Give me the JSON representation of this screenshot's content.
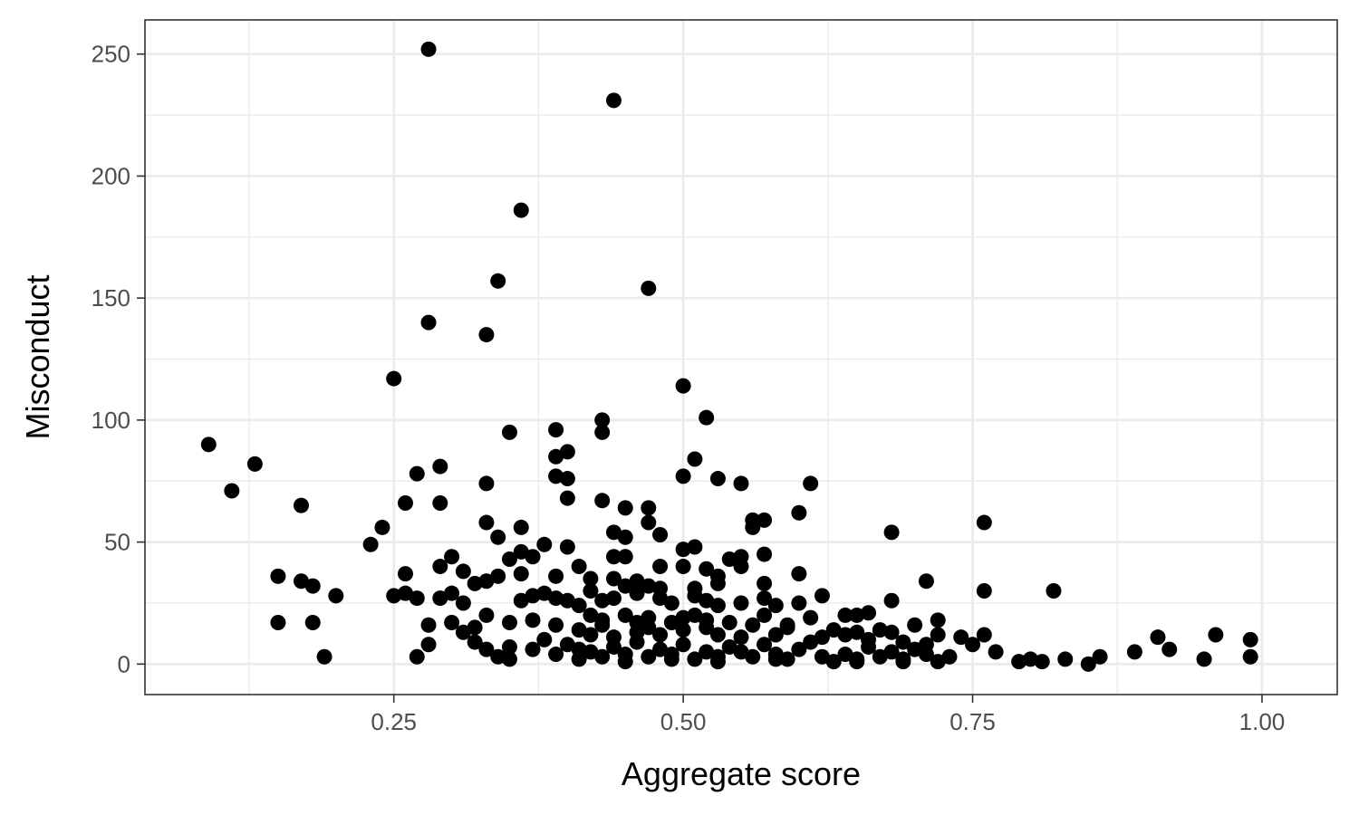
{
  "chart_data": {
    "type": "scatter",
    "title": "",
    "xlabel": "Aggregate score",
    "ylabel": "Misconduct",
    "xlim": [
      0.035,
      1.065
    ],
    "ylim": [
      -12.5,
      264
    ],
    "x_ticks": [
      0.25,
      0.5,
      0.75,
      1.0
    ],
    "x_tick_labels": [
      "0.25",
      "0.50",
      "0.75",
      "1.00"
    ],
    "y_ticks": [
      0,
      50,
      100,
      150,
      200,
      250
    ],
    "y_tick_labels": [
      "0",
      "50",
      "100",
      "150",
      "200",
      "250"
    ],
    "grid": true,
    "point_color": "#000000",
    "points": [
      [
        0.28,
        252
      ],
      [
        0.44,
        231
      ],
      [
        0.36,
        186
      ],
      [
        0.34,
        157
      ],
      [
        0.47,
        154
      ],
      [
        0.28,
        140
      ],
      [
        0.33,
        135
      ],
      [
        0.25,
        117
      ],
      [
        0.5,
        114
      ],
      [
        0.52,
        101
      ],
      [
        0.43,
        100
      ],
      [
        0.09,
        90
      ],
      [
        0.39,
        96
      ],
      [
        0.43,
        95
      ],
      [
        0.35,
        95
      ],
      [
        0.4,
        87
      ],
      [
        0.39,
        85
      ],
      [
        0.13,
        82
      ],
      [
        0.29,
        81
      ],
      [
        0.27,
        78
      ],
      [
        0.51,
        84
      ],
      [
        0.39,
        77
      ],
      [
        0.5,
        77
      ],
      [
        0.4,
        76
      ],
      [
        0.53,
        76
      ],
      [
        0.55,
        74
      ],
      [
        0.61,
        74
      ],
      [
        0.33,
        74
      ],
      [
        0.11,
        71
      ],
      [
        0.43,
        67
      ],
      [
        0.4,
        68
      ],
      [
        0.29,
        66
      ],
      [
        0.26,
        66
      ],
      [
        0.17,
        65
      ],
      [
        0.45,
        64
      ],
      [
        0.47,
        64
      ],
      [
        0.6,
        62
      ],
      [
        0.56,
        59
      ],
      [
        0.57,
        59
      ],
      [
        0.33,
        58
      ],
      [
        0.47,
        58
      ],
      [
        0.76,
        58
      ],
      [
        0.36,
        56
      ],
      [
        0.56,
        56
      ],
      [
        0.24,
        56
      ],
      [
        0.44,
        54
      ],
      [
        0.68,
        54
      ],
      [
        0.45,
        52
      ],
      [
        0.48,
        53
      ],
      [
        0.34,
        52
      ],
      [
        0.23,
        49
      ],
      [
        0.38,
        49
      ],
      [
        0.4,
        48
      ],
      [
        0.5,
        47
      ],
      [
        0.51,
        48
      ],
      [
        0.57,
        45
      ],
      [
        0.36,
        46
      ],
      [
        0.3,
        44
      ],
      [
        0.35,
        43
      ],
      [
        0.37,
        44
      ],
      [
        0.44,
        44
      ],
      [
        0.45,
        44
      ],
      [
        0.54,
        43
      ],
      [
        0.55,
        44
      ],
      [
        0.29,
        40
      ],
      [
        0.31,
        38
      ],
      [
        0.41,
        40
      ],
      [
        0.48,
        40
      ],
      [
        0.5,
        40
      ],
      [
        0.52,
        39
      ],
      [
        0.55,
        40
      ],
      [
        0.36,
        37
      ],
      [
        0.39,
        36
      ],
      [
        0.26,
        37
      ],
      [
        0.15,
        36
      ],
      [
        0.17,
        34
      ],
      [
        0.18,
        32
      ],
      [
        0.32,
        33
      ],
      [
        0.33,
        34
      ],
      [
        0.34,
        36
      ],
      [
        0.42,
        35
      ],
      [
        0.44,
        35
      ],
      [
        0.46,
        34
      ],
      [
        0.47,
        32
      ],
      [
        0.53,
        36
      ],
      [
        0.6,
        37
      ],
      [
        0.71,
        34
      ],
      [
        0.76,
        30
      ],
      [
        0.82,
        30
      ],
      [
        0.2,
        28
      ],
      [
        0.25,
        28
      ],
      [
        0.26,
        29
      ],
      [
        0.27,
        27
      ],
      [
        0.29,
        27
      ],
      [
        0.3,
        29
      ],
      [
        0.31,
        25
      ],
      [
        0.36,
        26
      ],
      [
        0.37,
        28
      ],
      [
        0.38,
        29
      ],
      [
        0.39,
        27
      ],
      [
        0.4,
        26
      ],
      [
        0.41,
        24
      ],
      [
        0.43,
        26
      ],
      [
        0.44,
        27
      ],
      [
        0.46,
        29
      ],
      [
        0.48,
        27
      ],
      [
        0.49,
        25
      ],
      [
        0.51,
        28
      ],
      [
        0.52,
        26
      ],
      [
        0.53,
        24
      ],
      [
        0.55,
        25
      ],
      [
        0.57,
        27
      ],
      [
        0.58,
        24
      ],
      [
        0.6,
        25
      ],
      [
        0.62,
        28
      ],
      [
        0.64,
        20
      ],
      [
        0.66,
        21
      ],
      [
        0.68,
        26
      ],
      [
        0.15,
        17
      ],
      [
        0.18,
        17
      ],
      [
        0.28,
        16
      ],
      [
        0.3,
        17
      ],
      [
        0.32,
        15
      ],
      [
        0.33,
        20
      ],
      [
        0.35,
        17
      ],
      [
        0.37,
        18
      ],
      [
        0.39,
        16
      ],
      [
        0.42,
        20
      ],
      [
        0.43,
        18
      ],
      [
        0.45,
        20
      ],
      [
        0.46,
        17
      ],
      [
        0.47,
        19
      ],
      [
        0.49,
        17
      ],
      [
        0.5,
        19
      ],
      [
        0.51,
        20
      ],
      [
        0.52,
        18
      ],
      [
        0.54,
        17
      ],
      [
        0.56,
        16
      ],
      [
        0.57,
        20
      ],
      [
        0.59,
        15
      ],
      [
        0.61,
        19
      ],
      [
        0.63,
        14
      ],
      [
        0.65,
        13
      ],
      [
        0.67,
        14
      ],
      [
        0.68,
        13
      ],
      [
        0.7,
        16
      ],
      [
        0.72,
        18
      ],
      [
        0.19,
        3
      ],
      [
        0.27,
        3
      ],
      [
        0.28,
        8
      ],
      [
        0.31,
        13
      ],
      [
        0.32,
        9
      ],
      [
        0.33,
        6
      ],
      [
        0.34,
        3
      ],
      [
        0.35,
        2
      ],
      [
        0.35,
        7
      ],
      [
        0.37,
        6
      ],
      [
        0.38,
        10
      ],
      [
        0.39,
        4
      ],
      [
        0.4,
        8
      ],
      [
        0.41,
        2
      ],
      [
        0.42,
        5
      ],
      [
        0.43,
        3
      ],
      [
        0.44,
        7
      ],
      [
        0.45,
        4
      ],
      [
        0.46,
        9
      ],
      [
        0.47,
        3
      ],
      [
        0.48,
        6
      ],
      [
        0.49,
        4
      ],
      [
        0.5,
        8
      ],
      [
        0.51,
        2
      ],
      [
        0.52,
        5
      ],
      [
        0.53,
        3
      ],
      [
        0.54,
        7
      ],
      [
        0.55,
        5
      ],
      [
        0.56,
        3
      ],
      [
        0.57,
        8
      ],
      [
        0.58,
        4
      ],
      [
        0.59,
        2
      ],
      [
        0.6,
        6
      ],
      [
        0.61,
        9
      ],
      [
        0.62,
        3
      ],
      [
        0.63,
        1
      ],
      [
        0.64,
        4
      ],
      [
        0.65,
        2
      ],
      [
        0.66,
        7
      ],
      [
        0.67,
        3
      ],
      [
        0.68,
        5
      ],
      [
        0.69,
        2
      ],
      [
        0.7,
        6
      ],
      [
        0.71,
        4
      ],
      [
        0.72,
        1
      ],
      [
        0.73,
        3
      ],
      [
        0.74,
        11
      ],
      [
        0.75,
        8
      ],
      [
        0.77,
        5
      ],
      [
        0.79,
        1
      ],
      [
        0.8,
        2
      ],
      [
        0.81,
        1
      ],
      [
        0.83,
        2
      ],
      [
        0.85,
        0
      ],
      [
        0.86,
        3
      ],
      [
        0.89,
        5
      ],
      [
        0.91,
        11
      ],
      [
        0.92,
        6
      ],
      [
        0.95,
        2
      ],
      [
        0.96,
        12
      ],
      [
        0.99,
        10
      ],
      [
        0.99,
        3
      ],
      [
        0.42,
        12
      ],
      [
        0.44,
        11
      ],
      [
        0.46,
        13
      ],
      [
        0.48,
        12
      ],
      [
        0.5,
        14
      ],
      [
        0.53,
        12
      ],
      [
        0.55,
        11
      ],
      [
        0.58,
        12
      ],
      [
        0.62,
        11
      ],
      [
        0.64,
        12
      ],
      [
        0.66,
        10
      ],
      [
        0.69,
        9
      ],
      [
        0.71,
        8
      ],
      [
        0.72,
        12
      ],
      [
        0.42,
        30
      ],
      [
        0.45,
        32
      ],
      [
        0.48,
        31
      ],
      [
        0.51,
        31
      ],
      [
        0.53,
        33
      ],
      [
        0.57,
        33
      ],
      [
        0.41,
        14
      ],
      [
        0.43,
        16
      ],
      [
        0.47,
        15
      ],
      [
        0.52,
        15
      ],
      [
        0.59,
        16
      ],
      [
        0.41,
        6
      ],
      [
        0.45,
        1
      ],
      [
        0.49,
        2
      ],
      [
        0.53,
        1
      ],
      [
        0.58,
        2
      ],
      [
        0.65,
        1
      ],
      [
        0.69,
        1
      ],
      [
        0.76,
        12
      ],
      [
        0.65,
        20
      ]
    ]
  }
}
